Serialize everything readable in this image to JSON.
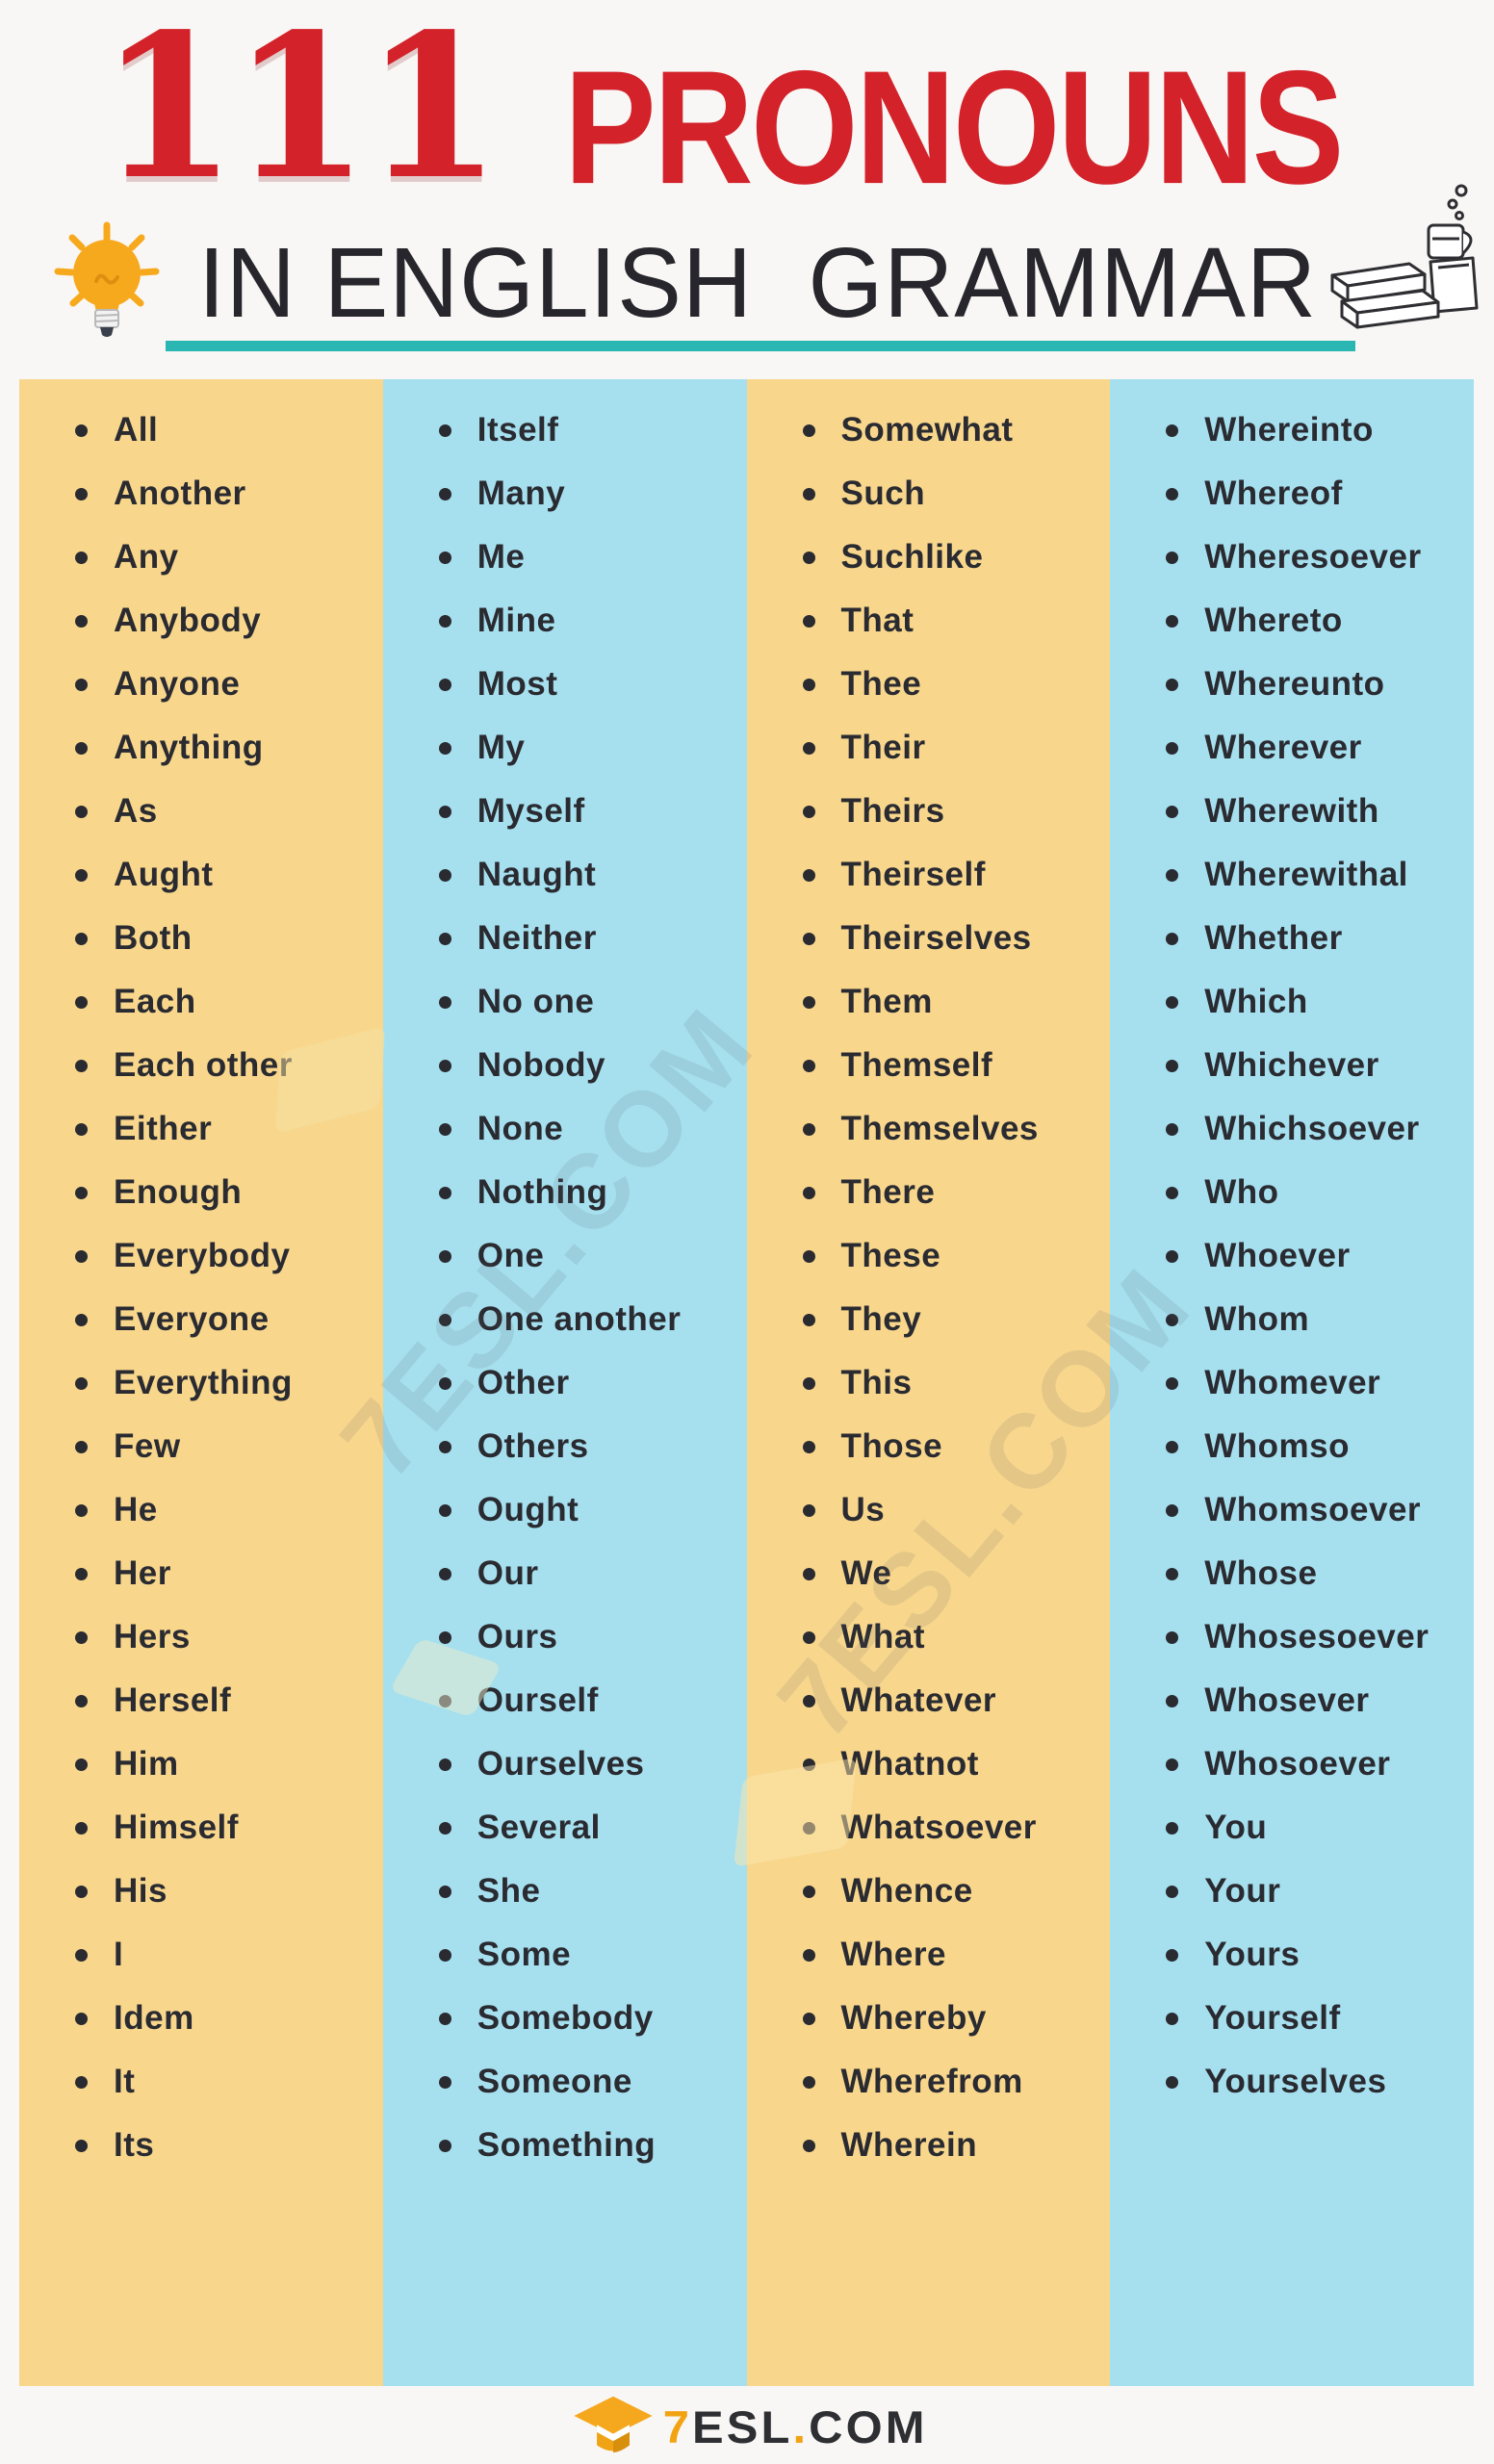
{
  "header": {
    "title_number": "111",
    "title_word": "PRONOUNS",
    "subtitle": "IN ENGLISH  GRAMMAR"
  },
  "icons": {
    "lightbulb": "lightbulb-icon",
    "books_and_cup": "books-icon",
    "graduation_cap": "graduation-cap-icon",
    "bullet": "bullet-icon"
  },
  "colors": {
    "accent_red": "#d3222a",
    "underline_teal": "#2ab6b2",
    "column_orange": "#f8d78d",
    "column_blue": "#a6e0ef",
    "brand_orange": "#f2a312",
    "text_dark": "#2a2a31",
    "page_background": "#f8f7f5"
  },
  "watermark": {
    "text": "7ESL.COM"
  },
  "columns": [
    {
      "bg": "#f8d78d",
      "items": [
        "All",
        "Another",
        "Any",
        "Anybody",
        "Anyone",
        "Anything",
        "As",
        "Aught",
        "Both",
        "Each",
        "Each other",
        "Either",
        "Enough",
        "Everybody",
        "Everyone",
        "Everything",
        "Few",
        "He",
        "Her",
        "Hers",
        "Herself",
        "Him",
        "Himself",
        "His",
        "I",
        "Idem",
        "It",
        "Its"
      ]
    },
    {
      "bg": "#a6e0ef",
      "items": [
        "Itself",
        "Many",
        "Me",
        "Mine",
        "Most",
        "My",
        "Myself",
        "Naught",
        "Neither",
        "No one",
        "Nobody",
        "None",
        "Nothing",
        "One",
        "One another",
        "Other",
        "Others",
        "Ought",
        "Our",
        "Ours",
        "Ourself",
        "Ourselves",
        "Several",
        "She",
        "Some",
        "Somebody",
        "Someone",
        "Something"
      ]
    },
    {
      "bg": "#f8d78d",
      "items": [
        "Somewhat",
        "Such",
        "Suchlike",
        "That",
        "Thee",
        "Their",
        "Theirs",
        "Theirself",
        "Theirselves",
        "Them",
        "Themself",
        "Themselves",
        "There",
        "These",
        "They",
        "This",
        "Those",
        "Us",
        "We",
        "What",
        "Whatever",
        "Whatnot",
        "Whatsoever",
        "Whence",
        "Where",
        "Whereby",
        "Wherefrom",
        "Wherein"
      ]
    },
    {
      "bg": "#a6e0ef",
      "items": [
        "Whereinto",
        "Whereof",
        "Wheresoever",
        "Whereto",
        "Whereunto",
        "Wherever",
        "Wherewith",
        "Wherewithal",
        "Whether",
        "Which",
        "Whichever",
        "Whichsoever",
        "Who",
        "Whoever",
        "Whom",
        "Whomever",
        "Whomso",
        "Whomsoever",
        "Whose",
        "Whosesoever",
        "Whosever",
        "Whosoever",
        "You",
        "Your",
        "Yours",
        "Yourself",
        "Yourselves"
      ]
    }
  ],
  "footer": {
    "brand_seven": "7",
    "brand_esl": "ESL",
    "brand_dot": ".",
    "brand_com": "COM"
  }
}
